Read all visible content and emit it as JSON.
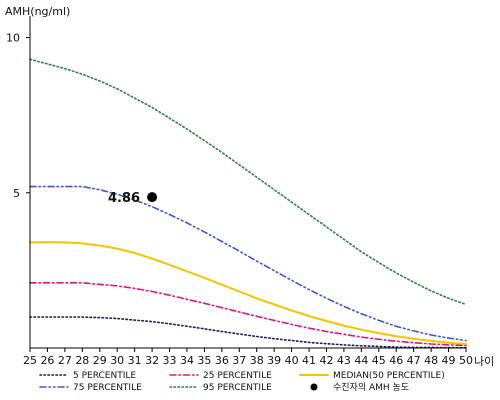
{
  "chart_data": {
    "type": "line",
    "ylabel": "AMH(ng/ml)",
    "xlabel": "나이",
    "xlim": [
      25,
      50
    ],
    "ylim": [
      0,
      10.5
    ],
    "y_ticks": [
      5,
      10
    ],
    "x": [
      25,
      26,
      27,
      28,
      29,
      30,
      31,
      32,
      33,
      34,
      35,
      36,
      37,
      38,
      39,
      40,
      41,
      42,
      43,
      44,
      45,
      46,
      47,
      48,
      49,
      50
    ],
    "series": [
      {
        "name": "5 PERCENTILE",
        "color": "#1a1a5e",
        "dash": "dotted",
        "values": [
          1.0,
          1.0,
          1.0,
          1.0,
          0.98,
          0.95,
          0.9,
          0.85,
          0.78,
          0.7,
          0.62,
          0.53,
          0.45,
          0.37,
          0.3,
          0.24,
          0.18,
          0.14,
          0.1,
          0.07,
          0.05,
          0.03,
          0.02,
          0.02,
          0.01,
          0.01
        ]
      },
      {
        "name": "25 PERCENTILE",
        "color": "#e0147c",
        "dash": "dashdot",
        "values": [
          2.1,
          2.1,
          2.1,
          2.1,
          2.05,
          2.0,
          1.92,
          1.82,
          1.7,
          1.57,
          1.44,
          1.3,
          1.16,
          1.02,
          0.89,
          0.76,
          0.64,
          0.53,
          0.44,
          0.35,
          0.28,
          0.22,
          0.17,
          0.13,
          0.1,
          0.08
        ]
      },
      {
        "name": "MEDIAN(50 PERCENTILE)",
        "color": "#f5c400",
        "dash": "solid",
        "values": [
          3.4,
          3.41,
          3.4,
          3.37,
          3.3,
          3.2,
          3.06,
          2.88,
          2.68,
          2.47,
          2.26,
          2.04,
          1.82,
          1.6,
          1.4,
          1.21,
          1.03,
          0.87,
          0.72,
          0.59,
          0.48,
          0.38,
          0.3,
          0.23,
          0.17,
          0.13
        ]
      },
      {
        "name": "75 PERCENTILE",
        "color": "#3b58c9",
        "dash": "dashdotdot",
        "values": [
          5.2,
          5.2,
          5.2,
          5.2,
          5.1,
          4.95,
          4.77,
          4.55,
          4.3,
          4.03,
          3.74,
          3.43,
          3.12,
          2.8,
          2.49,
          2.18,
          1.88,
          1.6,
          1.34,
          1.1,
          0.89,
          0.7,
          0.55,
          0.42,
          0.32,
          0.24
        ]
      },
      {
        "name": "95 PERCENTILE",
        "color": "#2e7d4a",
        "dash": "dotted",
        "values": [
          9.3,
          9.15,
          9.0,
          8.82,
          8.6,
          8.35,
          8.05,
          7.75,
          7.4,
          7.05,
          6.68,
          6.3,
          5.9,
          5.5,
          5.1,
          4.7,
          4.3,
          3.9,
          3.5,
          3.1,
          2.75,
          2.42,
          2.12,
          1.84,
          1.6,
          1.4
        ]
      }
    ],
    "highlight_point": {
      "name": "수진자의 AMH 농도",
      "x": 32,
      "y": 4.86,
      "label": "4.86",
      "color": "#000000"
    },
    "legend_position": "bottom"
  }
}
